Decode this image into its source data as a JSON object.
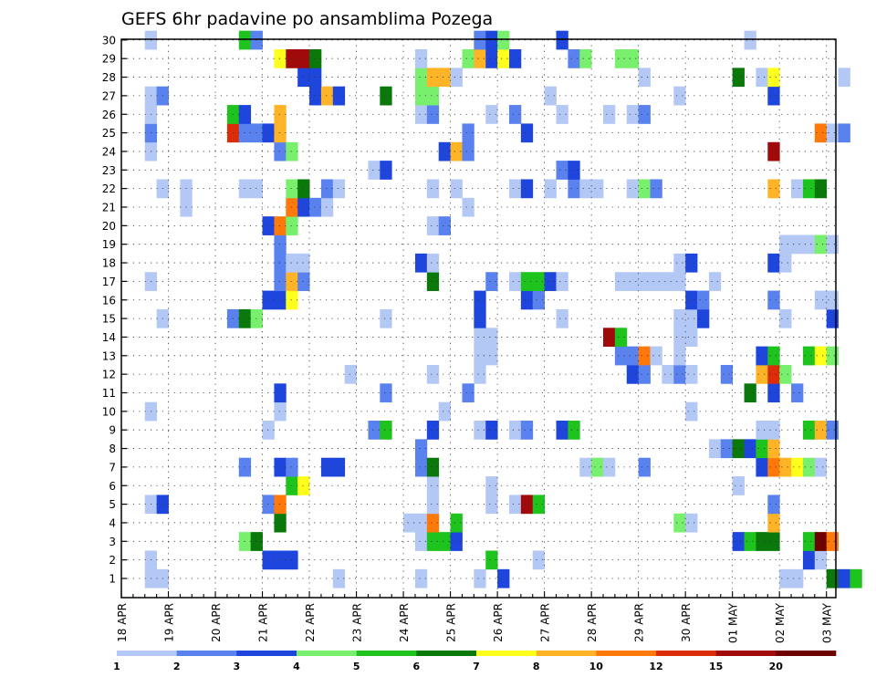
{
  "chart_data": {
    "type": "heatmap",
    "title": "GEFS 6hr padavine po ansamblima Pozega",
    "x_tick_labels": [
      "18 APR",
      "19 APR",
      "20 APR",
      "21 APR",
      "22 APR",
      "23 APR",
      "24 APR",
      "25 APR",
      "26 APR",
      "27 APR",
      "28 APR",
      "29 APR",
      "30 APR",
      "01 MAY",
      "02 MAY",
      "03 MAY"
    ],
    "x_ticks_per_day": 4,
    "y_members": [
      1,
      2,
      3,
      4,
      5,
      6,
      7,
      8,
      9,
      10,
      11,
      12,
      13,
      14,
      15,
      16,
      17,
      18,
      19,
      20,
      21,
      22,
      23,
      24,
      25,
      26,
      27,
      28,
      29,
      30
    ],
    "grid": true,
    "colorbar": {
      "levels": [
        "1",
        "2",
        "3",
        "4",
        "5",
        "6",
        "7",
        "8",
        "10",
        "12",
        "15",
        "20"
      ],
      "colors": [
        "#b4c8f5",
        "#5a82ee",
        "#1e46dc",
        "#78f06e",
        "#1ec31e",
        "#0a780a",
        "#ffff1e",
        "#ffb428",
        "#ff780a",
        "#dc2d0a",
        "#a00a0a",
        "#6e0000"
      ]
    },
    "cells": [
      [
        1,
        3,
        1
      ],
      [
        1,
        4,
        1
      ],
      [
        1,
        19,
        1
      ],
      [
        1,
        26,
        1
      ],
      [
        1,
        31,
        1
      ],
      [
        1,
        33,
        3
      ],
      [
        1,
        57,
        1
      ],
      [
        1,
        58,
        1
      ],
      [
        1,
        61,
        6
      ],
      [
        1,
        62,
        3
      ],
      [
        1,
        63,
        5
      ],
      [
        2,
        3,
        1
      ],
      [
        2,
        13,
        3
      ],
      [
        2,
        14,
        3
      ],
      [
        2,
        15,
        3
      ],
      [
        2,
        32,
        5
      ],
      [
        2,
        36,
        1
      ],
      [
        2,
        59,
        3
      ],
      [
        2,
        60,
        1
      ],
      [
        3,
        11,
        4
      ],
      [
        3,
        12,
        6
      ],
      [
        3,
        26,
        1
      ],
      [
        3,
        27,
        5
      ],
      [
        3,
        28,
        5
      ],
      [
        3,
        29,
        3
      ],
      [
        3,
        53,
        3
      ],
      [
        3,
        54,
        5
      ],
      [
        3,
        55,
        6
      ],
      [
        3,
        56,
        6
      ],
      [
        3,
        59,
        5
      ],
      [
        3,
        60,
        12
      ],
      [
        3,
        61,
        9
      ],
      [
        4,
        14,
        6
      ],
      [
        4,
        25,
        1
      ],
      [
        4,
        26,
        1
      ],
      [
        4,
        27,
        9
      ],
      [
        4,
        29,
        5
      ],
      [
        4,
        48,
        4
      ],
      [
        4,
        49,
        1
      ],
      [
        4,
        56,
        8
      ],
      [
        5,
        3,
        1
      ],
      [
        5,
        4,
        3
      ],
      [
        5,
        13,
        2
      ],
      [
        5,
        14,
        9
      ],
      [
        5,
        27,
        1
      ],
      [
        5,
        32,
        1
      ],
      [
        5,
        34,
        1
      ],
      [
        5,
        35,
        11
      ],
      [
        5,
        36,
        5
      ],
      [
        5,
        56,
        2
      ],
      [
        6,
        15,
        5
      ],
      [
        6,
        16,
        7
      ],
      [
        6,
        27,
        1
      ],
      [
        6,
        32,
        1
      ],
      [
        6,
        53,
        1
      ],
      [
        7,
        11,
        2
      ],
      [
        7,
        14,
        3
      ],
      [
        7,
        15,
        2
      ],
      [
        7,
        18,
        3
      ],
      [
        7,
        19,
        3
      ],
      [
        7,
        26,
        2
      ],
      [
        7,
        27,
        6
      ],
      [
        7,
        40,
        1
      ],
      [
        7,
        41,
        4
      ],
      [
        7,
        42,
        1
      ],
      [
        7,
        45,
        2
      ],
      [
        7,
        55,
        3
      ],
      [
        7,
        56,
        9
      ],
      [
        7,
        57,
        8
      ],
      [
        7,
        58,
        7
      ],
      [
        7,
        59,
        4
      ],
      [
        7,
        60,
        1
      ],
      [
        8,
        26,
        2
      ],
      [
        8,
        51,
        1
      ],
      [
        8,
        52,
        2
      ],
      [
        8,
        53,
        6
      ],
      [
        8,
        54,
        3
      ],
      [
        8,
        55,
        5
      ],
      [
        8,
        56,
        8
      ],
      [
        9,
        13,
        1
      ],
      [
        9,
        22,
        2
      ],
      [
        9,
        23,
        5
      ],
      [
        9,
        27,
        3
      ],
      [
        9,
        31,
        1
      ],
      [
        9,
        32,
        3
      ],
      [
        9,
        34,
        1
      ],
      [
        9,
        35,
        2
      ],
      [
        9,
        38,
        3
      ],
      [
        9,
        39,
        5
      ],
      [
        9,
        55,
        1
      ],
      [
        9,
        56,
        1
      ],
      [
        9,
        59,
        5
      ],
      [
        9,
        60,
        8
      ],
      [
        9,
        61,
        2
      ],
      [
        10,
        3,
        1
      ],
      [
        10,
        14,
        1
      ],
      [
        10,
        28,
        1
      ],
      [
        10,
        49,
        1
      ],
      [
        11,
        14,
        3
      ],
      [
        11,
        23,
        2
      ],
      [
        11,
        30,
        2
      ],
      [
        11,
        54,
        6
      ],
      [
        11,
        56,
        3
      ],
      [
        11,
        58,
        2
      ],
      [
        12,
        20,
        1
      ],
      [
        12,
        27,
        1
      ],
      [
        12,
        31,
        1
      ],
      [
        12,
        44,
        3
      ],
      [
        12,
        45,
        2
      ],
      [
        12,
        47,
        1
      ],
      [
        12,
        48,
        2
      ],
      [
        12,
        49,
        1
      ],
      [
        12,
        52,
        2
      ],
      [
        12,
        55,
        8
      ],
      [
        12,
        56,
        10
      ],
      [
        12,
        57,
        4
      ],
      [
        13,
        31,
        1
      ],
      [
        13,
        32,
        1
      ],
      [
        13,
        43,
        2
      ],
      [
        13,
        44,
        2
      ],
      [
        13,
        45,
        9
      ],
      [
        13,
        46,
        1
      ],
      [
        13,
        48,
        1
      ],
      [
        13,
        55,
        3
      ],
      [
        13,
        56,
        5
      ],
      [
        13,
        59,
        5
      ],
      [
        13,
        60,
        7
      ],
      [
        13,
        61,
        4
      ],
      [
        14,
        31,
        1
      ],
      [
        14,
        32,
        1
      ],
      [
        14,
        42,
        11
      ],
      [
        14,
        43,
        5
      ],
      [
        14,
        48,
        1
      ],
      [
        14,
        49,
        1
      ],
      [
        15,
        4,
        1
      ],
      [
        15,
        10,
        2
      ],
      [
        15,
        11,
        6
      ],
      [
        15,
        12,
        4
      ],
      [
        15,
        23,
        1
      ],
      [
        15,
        31,
        3
      ],
      [
        15,
        38,
        1
      ],
      [
        15,
        48,
        1
      ],
      [
        15,
        49,
        1
      ],
      [
        15,
        50,
        3
      ],
      [
        15,
        57,
        1
      ],
      [
        15,
        61,
        3
      ],
      [
        16,
        13,
        3
      ],
      [
        16,
        14,
        3
      ],
      [
        16,
        15,
        7
      ],
      [
        16,
        31,
        3
      ],
      [
        16,
        35,
        3
      ],
      [
        16,
        36,
        2
      ],
      [
        16,
        49,
        3
      ],
      [
        16,
        50,
        2
      ],
      [
        16,
        56,
        2
      ],
      [
        16,
        60,
        1
      ],
      [
        16,
        61,
        1
      ],
      [
        17,
        3,
        1
      ],
      [
        17,
        14,
        2
      ],
      [
        17,
        15,
        8
      ],
      [
        17,
        16,
        2
      ],
      [
        17,
        27,
        6
      ],
      [
        17,
        32,
        2
      ],
      [
        17,
        34,
        1
      ],
      [
        17,
        35,
        5
      ],
      [
        17,
        36,
        5
      ],
      [
        17,
        37,
        3
      ],
      [
        17,
        38,
        1
      ],
      [
        17,
        43,
        1
      ],
      [
        17,
        44,
        1
      ],
      [
        17,
        45,
        1
      ],
      [
        17,
        46,
        1
      ],
      [
        17,
        47,
        1
      ],
      [
        17,
        48,
        1
      ],
      [
        17,
        51,
        1
      ],
      [
        18,
        14,
        2
      ],
      [
        18,
        15,
        1
      ],
      [
        18,
        16,
        1
      ],
      [
        18,
        26,
        3
      ],
      [
        18,
        27,
        1
      ],
      [
        18,
        48,
        1
      ],
      [
        18,
        49,
        3
      ],
      [
        18,
        56,
        3
      ],
      [
        18,
        57,
        1
      ],
      [
        19,
        14,
        2
      ],
      [
        19,
        57,
        1
      ],
      [
        19,
        58,
        1
      ],
      [
        19,
        59,
        1
      ],
      [
        19,
        60,
        4
      ],
      [
        19,
        61,
        1
      ],
      [
        20,
        13,
        3
      ],
      [
        20,
        14,
        9
      ],
      [
        20,
        15,
        4
      ],
      [
        20,
        27,
        1
      ],
      [
        20,
        28,
        2
      ],
      [
        21,
        6,
        1
      ],
      [
        21,
        15,
        9
      ],
      [
        21,
        16,
        3
      ],
      [
        21,
        17,
        2
      ],
      [
        21,
        18,
        1
      ],
      [
        21,
        30,
        1
      ],
      [
        22,
        4,
        1
      ],
      [
        22,
        6,
        1
      ],
      [
        22,
        11,
        1
      ],
      [
        22,
        12,
        1
      ],
      [
        22,
        15,
        4
      ],
      [
        22,
        16,
        6
      ],
      [
        22,
        18,
        2
      ],
      [
        22,
        19,
        1
      ],
      [
        22,
        27,
        1
      ],
      [
        22,
        29,
        1
      ],
      [
        22,
        34,
        1
      ],
      [
        22,
        35,
        3
      ],
      [
        22,
        37,
        1
      ],
      [
        22,
        39,
        2
      ],
      [
        22,
        40,
        1
      ],
      [
        22,
        41,
        1
      ],
      [
        22,
        44,
        1
      ],
      [
        22,
        45,
        4
      ],
      [
        22,
        46,
        2
      ],
      [
        22,
        56,
        8
      ],
      [
        22,
        58,
        1
      ],
      [
        22,
        59,
        5
      ],
      [
        22,
        60,
        6
      ],
      [
        23,
        22,
        1
      ],
      [
        23,
        23,
        3
      ],
      [
        23,
        38,
        2
      ],
      [
        23,
        39,
        3
      ],
      [
        24,
        3,
        1
      ],
      [
        24,
        14,
        2
      ],
      [
        24,
        15,
        4
      ],
      [
        24,
        28,
        3
      ],
      [
        24,
        29,
        8
      ],
      [
        24,
        30,
        2
      ],
      [
        24,
        56,
        11
      ],
      [
        25,
        3,
        2
      ],
      [
        25,
        10,
        10
      ],
      [
        25,
        11,
        2
      ],
      [
        25,
        12,
        2
      ],
      [
        25,
        13,
        3
      ],
      [
        25,
        14,
        8
      ],
      [
        25,
        30,
        2
      ],
      [
        25,
        35,
        3
      ],
      [
        25,
        60,
        9
      ],
      [
        25,
        61,
        1
      ],
      [
        25,
        62,
        2
      ],
      [
        26,
        3,
        1
      ],
      [
        26,
        10,
        5
      ],
      [
        26,
        11,
        3
      ],
      [
        26,
        14,
        8
      ],
      [
        26,
        26,
        1
      ],
      [
        26,
        27,
        2
      ],
      [
        26,
        32,
        1
      ],
      [
        26,
        34,
        2
      ],
      [
        26,
        38,
        1
      ],
      [
        26,
        42,
        1
      ],
      [
        26,
        44,
        1
      ],
      [
        26,
        45,
        2
      ],
      [
        27,
        3,
        1
      ],
      [
        27,
        4,
        2
      ],
      [
        27,
        17,
        3
      ],
      [
        27,
        18,
        8
      ],
      [
        27,
        19,
        3
      ],
      [
        27,
        23,
        6
      ],
      [
        27,
        26,
        4
      ],
      [
        27,
        27,
        4
      ],
      [
        27,
        37,
        1
      ],
      [
        27,
        48,
        1
      ],
      [
        27,
        56,
        3
      ],
      [
        28,
        16,
        3
      ],
      [
        28,
        17,
        3
      ],
      [
        28,
        26,
        4
      ],
      [
        28,
        27,
        8
      ],
      [
        28,
        28,
        8
      ],
      [
        28,
        29,
        1
      ],
      [
        28,
        45,
        1
      ],
      [
        28,
        53,
        6
      ],
      [
        28,
        55,
        1
      ],
      [
        28,
        56,
        7
      ],
      [
        28,
        62,
        1
      ],
      [
        29,
        14,
        7
      ],
      [
        29,
        15,
        11
      ],
      [
        29,
        16,
        11
      ],
      [
        29,
        17,
        6
      ],
      [
        29,
        26,
        1
      ],
      [
        29,
        30,
        4
      ],
      [
        29,
        31,
        8
      ],
      [
        29,
        32,
        3
      ],
      [
        29,
        33,
        7
      ],
      [
        29,
        34,
        3
      ],
      [
        29,
        39,
        2
      ],
      [
        29,
        40,
        4
      ],
      [
        29,
        43,
        4
      ],
      [
        29,
        44,
        4
      ],
      [
        30,
        3,
        1
      ],
      [
        30,
        11,
        5
      ],
      [
        30,
        12,
        2
      ],
      [
        30,
        31,
        2
      ],
      [
        30,
        32,
        3
      ],
      [
        30,
        33,
        4
      ],
      [
        30,
        38,
        3
      ],
      [
        30,
        54,
        1
      ]
    ]
  }
}
